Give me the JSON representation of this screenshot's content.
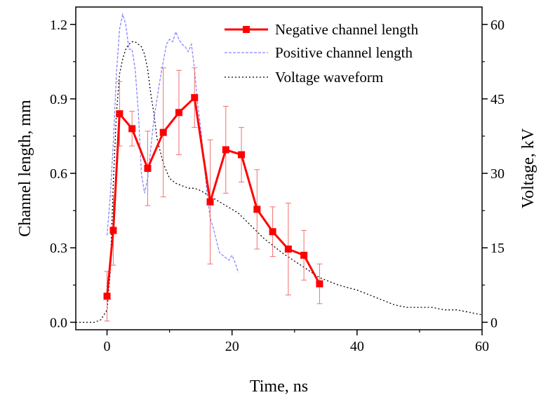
{
  "chart_data": {
    "type": "line",
    "xlabel": "Time, ns",
    "ylabel": "Channel length, mm",
    "y2label": "Voltage, kV",
    "xlim": [
      -5,
      60
    ],
    "ylim": [
      -0.03,
      1.27
    ],
    "y2lim": [
      -1.5,
      63.5
    ],
    "xticks": [
      0,
      20,
      40,
      60
    ],
    "yticks": [
      0.0,
      0.3,
      0.6,
      0.9,
      1.2
    ],
    "y2ticks": [
      0,
      15,
      30,
      45,
      60
    ],
    "xtick_labels": [
      "0",
      "20",
      "40",
      "60"
    ],
    "ytick_labels": [
      "0.0",
      "0.3",
      "0.6",
      "0.9",
      "1.2"
    ],
    "y2tick_labels": [
      "0",
      "15",
      "30",
      "45",
      "60"
    ],
    "legend_position": "top-right",
    "series": [
      {
        "name": "Negative channel length",
        "axis": "left",
        "color": "#ff0000",
        "style": "solid-square-markers",
        "x": [
          0,
          1,
          2,
          4,
          6.5,
          9,
          11.5,
          14,
          16.5,
          19,
          21.5,
          24,
          26.5,
          29,
          31.5,
          34
        ],
        "y": [
          0.105,
          0.37,
          0.84,
          0.78,
          0.62,
          0.765,
          0.845,
          0.905,
          0.485,
          0.695,
          0.675,
          0.455,
          0.365,
          0.295,
          0.27,
          0.155
        ],
        "err": [
          0.1,
          0.14,
          0.13,
          0.07,
          0.15,
          0.26,
          0.17,
          0.12,
          0.25,
          0.175,
          0.11,
          0.16,
          0.1,
          0.185,
          0.1,
          0.08
        ]
      },
      {
        "name": "Positive channel length",
        "axis": "left",
        "color": "#8888ff",
        "style": "dashed",
        "x": [
          0,
          0.5,
          1,
          1.5,
          2,
          2.5,
          3,
          3.5,
          4,
          4.5,
          5,
          5.5,
          6,
          6.5,
          7,
          7.5,
          8,
          8.5,
          9,
          9.5,
          10,
          10.5,
          11,
          11.5,
          12,
          12.5,
          13,
          13.5,
          14,
          14.5,
          15,
          15.5,
          16,
          16.5,
          17,
          17.5,
          18,
          18.5,
          19,
          19.5,
          20,
          20.5,
          21
        ],
        "y": [
          0.35,
          0.5,
          0.72,
          1.0,
          1.18,
          1.24,
          1.2,
          1.1,
          1.1,
          1.02,
          0.85,
          0.6,
          0.52,
          0.58,
          0.7,
          0.82,
          0.9,
          0.98,
          1.05,
          1.12,
          1.14,
          1.13,
          1.17,
          1.14,
          1.12,
          1.11,
          1.09,
          1.12,
          1.02,
          0.88,
          0.78,
          0.65,
          0.52,
          0.42,
          0.38,
          0.33,
          0.28,
          0.27,
          0.26,
          0.25,
          0.27,
          0.24,
          0.2
        ]
      },
      {
        "name": "Voltage waveform",
        "axis": "right",
        "color": "#000000",
        "style": "dotted",
        "x": [
          -5,
          -3,
          -2,
          -1,
          0,
          0.5,
          1,
          1.5,
          2,
          2.5,
          3,
          3.5,
          4,
          4.5,
          5,
          5.5,
          6,
          6.5,
          7,
          7.5,
          8,
          9,
          10,
          11,
          12,
          13,
          14,
          15,
          17,
          19,
          21,
          23,
          25,
          28,
          31,
          34,
          37,
          40,
          42,
          44,
          46,
          48,
          50,
          52,
          54,
          56,
          58,
          60
        ],
        "y": [
          0,
          0,
          0,
          0.5,
          2.5,
          10,
          28,
          42,
          50,
          53,
          55,
          56,
          56.5,
          56.5,
          56,
          55.5,
          54,
          51,
          46,
          42,
          37,
          32,
          29,
          28,
          27.5,
          27,
          27,
          26.5,
          25,
          23.5,
          22,
          19.5,
          17,
          14,
          11.5,
          9,
          7.5,
          6.5,
          5.5,
          4.5,
          3.5,
          3,
          3,
          3,
          2.5,
          2.5,
          2,
          1.5
        ]
      }
    ]
  }
}
